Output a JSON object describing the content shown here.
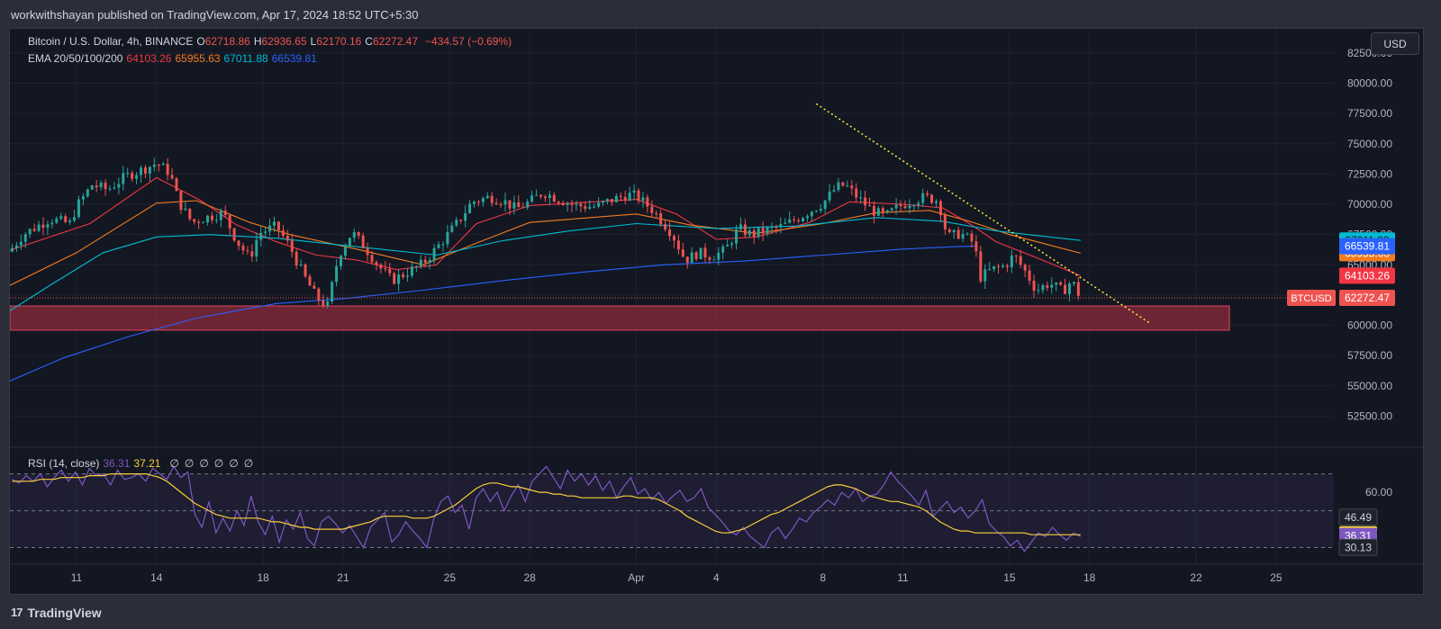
{
  "header": {
    "published": "workwithshayan published on TradingView.com, Apr 17, 2024 18:52 UTC+5:30"
  },
  "legend": {
    "symbol": "Bitcoin / U.S. Dollar, 4h, BINANCE",
    "ohlc": [
      {
        "k": "O",
        "v": "62718.86"
      },
      {
        "k": "H",
        "v": "62936.65"
      },
      {
        "k": "L",
        "v": "62170.16"
      },
      {
        "k": "C",
        "v": "62272.47"
      }
    ],
    "change": "−434.57 (−0.69%)",
    "ema_label": "EMA 20/50/100/200",
    "ema_values": [
      "64103.26",
      "65955.63",
      "67011.88",
      "66539.81"
    ],
    "rsi_label": "RSI (14, close)",
    "rsi_values": [
      "36.31",
      "37.21"
    ],
    "rsi_extra": [
      "∅",
      "∅",
      "∅",
      "∅",
      "∅",
      "∅"
    ]
  },
  "currency_button": "USD",
  "footer_brand": "TradingView",
  "colors": {
    "bg": "#131722",
    "up": "#26a69a",
    "down": "#ef5350",
    "ema20": "#f23645",
    "ema50": "#f57c1f",
    "ema100": "#00bcd4",
    "ema200": "#2962ff",
    "rsi": "#7e57c2",
    "rsi_ma": "#f7d138",
    "trendline": "#ffeb3b",
    "zone": "#8c2b3c"
  },
  "chart_data": {
    "type": "candlestick",
    "title": "Bitcoin / U.S. Dollar, 4h, BINANCE",
    "price_axis": {
      "ticks": [
        "82500.00",
        "80000.00",
        "77500.00",
        "75000.00",
        "72500.00",
        "70000.00",
        "67500.00",
        "65000.00",
        "62500.00",
        "60000.00",
        "57500.00",
        "55000.00",
        "52500.00"
      ],
      "ylim": [
        50300,
        84500
      ]
    },
    "time_axis": {
      "labels": [
        "11",
        "14",
        "18",
        "21",
        "25",
        "28",
        "Apr",
        "4",
        "8",
        "11",
        "15",
        "18",
        "22",
        "25"
      ],
      "label_dates": [
        "Mar 11",
        "Mar 14",
        "Mar 18",
        "Mar 21",
        "Mar 25",
        "Mar 28",
        "Apr 1",
        "Apr 4",
        "Apr 8",
        "Apr 11",
        "Apr 15",
        "Apr 18",
        "Apr 22",
        "Apr 25"
      ],
      "xlim": [
        "Mar 8 12:00",
        "Apr 27 04:00"
      ],
      "last_bar": "Apr 17 16:00"
    },
    "close_path": [
      [
        "Mar 8 14:00",
        66400
      ],
      [
        "Mar 9 00:00",
        67500
      ],
      [
        "Mar 10 00:00",
        68800
      ],
      [
        "Mar 10 18:00",
        68400
      ],
      [
        "Mar 11 00:00",
        69800
      ],
      [
        "Mar 11 14:00",
        71600
      ],
      [
        "Mar 12 04:00",
        71200
      ],
      [
        "Mar 12 20:00",
        72300
      ],
      [
        "Mar 13 12:00",
        72900
      ],
      [
        "Mar 14 00:00",
        73400
      ],
      [
        "Mar 14 12:00",
        72600
      ],
      [
        "Mar 14 20:00",
        70200
      ],
      [
        "Mar 15 08:00",
        68500
      ],
      [
        "Mar 15 20:00",
        68900
      ],
      [
        "Mar 16 12:00",
        69300
      ],
      [
        "Mar 17 00:00",
        67000
      ],
      [
        "Mar 17 12:00",
        65500
      ],
      [
        "Mar 17 20:00",
        67600
      ],
      [
        "Mar 18 12:00",
        68200
      ],
      [
        "Mar 19 00:00",
        66500
      ],
      [
        "Mar 19 12:00",
        64200
      ],
      [
        "Mar 20 00:00",
        62300
      ],
      [
        "Mar 20 10:00",
        61600
      ],
      [
        "Mar 20 20:00",
        65800
      ],
      [
        "Mar 21 08:00",
        67700
      ],
      [
        "Mar 21 20:00",
        66400
      ],
      [
        "Mar 22 08:00",
        64900
      ],
      [
        "Mar 22 20:00",
        63700
      ],
      [
        "Mar 23 08:00",
        64300
      ],
      [
        "Mar 24 00:00",
        65100
      ],
      [
        "Mar 24 16:00",
        66800
      ],
      [
        "Mar 25 08:00",
        68600
      ],
      [
        "Mar 25 20:00",
        70200
      ],
      [
        "Mar 26 12:00",
        70600
      ],
      [
        "Mar 27 00:00",
        70300
      ],
      [
        "Mar 27 12:00",
        69600
      ],
      [
        "Mar 28 00:00",
        70200
      ],
      [
        "Mar 28 12:00",
        71000
      ],
      [
        "Mar 29 00:00",
        70500
      ],
      [
        "Mar 29 16:00",
        69900
      ],
      [
        "Mar 30 12:00",
        69800
      ],
      [
        "Mar 31 00:00",
        70300
      ],
      [
        "Mar 31 16:00",
        70800
      ],
      [
        "Apr 1 00:00",
        70700
      ],
      [
        "Apr 1 16:00",
        69400
      ],
      [
        "Apr 2 08:00",
        67600
      ],
      [
        "Apr 2 20:00",
        65400
      ],
      [
        "Apr 3 08:00",
        66000
      ],
      [
        "Apr 3 20:00",
        65700
      ],
      [
        "Apr 4 08:00",
        66200
      ],
      [
        "Apr 4 20:00",
        68000
      ],
      [
        "Apr 5 08:00",
        67500
      ],
      [
        "Apr 5 20:00",
        67800
      ],
      [
        "Apr 6 12:00",
        68200
      ],
      [
        "Apr 7 08:00",
        69200
      ],
      [
        "Apr 8 00:00",
        70100
      ],
      [
        "Apr 8 12:00",
        71400
      ],
      [
        "Apr 8 20:00",
        71600
      ],
      [
        "Apr 9 08:00",
        70500
      ],
      [
        "Apr 9 20:00",
        69500
      ],
      [
        "Apr 10 08:00",
        69000
      ],
      [
        "Apr 10 20:00",
        69800
      ],
      [
        "Apr 11 08:00",
        70300
      ],
      [
        "Apr 11 20:00",
        70600
      ],
      [
        "Apr 12 08:00",
        70300
      ],
      [
        "Apr 12 16:00",
        67300
      ],
      [
        "Apr 13 04:00",
        67600
      ],
      [
        "Apr 13 16:00",
        66800
      ],
      [
        "Apr 13 22:00",
        64000
      ],
      [
        "Apr 14 08:00",
        64600
      ],
      [
        "Apr 14 20:00",
        64900
      ],
      [
        "Apr 15 04:00",
        65800
      ],
      [
        "Apr 15 16:00",
        64200
      ],
      [
        "Apr 16 00:00",
        62900
      ],
      [
        "Apr 16 12:00",
        63500
      ],
      [
        "Apr 17 00:00",
        62800
      ],
      [
        "Apr 17 08:00",
        63700
      ],
      [
        "Apr 17 16:00",
        62272
      ]
    ],
    "ema": [
      {
        "name": "EMA 20",
        "value": 64103.26,
        "points": [
          [
            "Mar 8 12:00",
            66200
          ],
          [
            "Mar 11 12:00",
            68400
          ],
          [
            "Mar 14 00:00",
            72200
          ],
          [
            "Mar 15 16:00",
            70300
          ],
          [
            "Mar 17 00:00",
            68300
          ],
          [
            "Mar 18 12:00",
            66900
          ],
          [
            "Mar 20 00:00",
            65800
          ],
          [
            "Mar 21 12:00",
            65400
          ],
          [
            "Mar 23 00:00",
            64600
          ],
          [
            "Mar 24 12:00",
            65000
          ],
          [
            "Mar 26 00:00",
            68400
          ],
          [
            "Mar 28 00:00",
            69900
          ],
          [
            "Apr 1 00:00",
            70400
          ],
          [
            "Apr 2 12:00",
            69200
          ],
          [
            "Apr 4 00:00",
            67100
          ],
          [
            "Apr 5 12:00",
            67300
          ],
          [
            "Apr 7 12:00",
            68500
          ],
          [
            "Apr 9 00:00",
            70200
          ],
          [
            "Apr 11 00:00",
            70000
          ],
          [
            "Apr 12 12:00",
            69700
          ],
          [
            "Apr 13 12:00",
            68400
          ],
          [
            "Apr 14 12:00",
            66900
          ],
          [
            "Apr 16 00:00",
            65600
          ],
          [
            "Apr 17 16:00",
            64100
          ]
        ]
      },
      {
        "name": "EMA 50",
        "value": 65955.63,
        "points": [
          [
            "Mar 8 12:00",
            63300
          ],
          [
            "Mar 11 00:00",
            66000
          ],
          [
            "Mar 14 00:00",
            70100
          ],
          [
            "Mar 15 12:00",
            70300
          ],
          [
            "Mar 17 12:00",
            68500
          ],
          [
            "Mar 19 00:00",
            67500
          ],
          [
            "Mar 21 12:00",
            66300
          ],
          [
            "Mar 24 00:00",
            65000
          ],
          [
            "Mar 26 00:00",
            66800
          ],
          [
            "Mar 28 00:00",
            68500
          ],
          [
            "Apr 1 00:00",
            69200
          ],
          [
            "Apr 3 00:00",
            68300
          ],
          [
            "Apr 5 12:00",
            67600
          ],
          [
            "Apr 8 00:00",
            68400
          ],
          [
            "Apr 10 00:00",
            69300
          ],
          [
            "Apr 12 00:00",
            69500
          ],
          [
            "Apr 13 12:00",
            68600
          ],
          [
            "Apr 15 00:00",
            67500
          ],
          [
            "Apr 17 16:00",
            65960
          ]
        ]
      },
      {
        "name": "EMA 100",
        "value": 67011.88,
        "points": [
          [
            "Mar 8 12:00",
            61200
          ],
          [
            "Mar 10 00:00",
            63300
          ],
          [
            "Mar 12 00:00",
            66000
          ],
          [
            "Mar 14 00:00",
            67300
          ],
          [
            "Mar 16 00:00",
            67500
          ],
          [
            "Mar 18 12:00",
            67200
          ],
          [
            "Mar 21 12:00",
            66500
          ],
          [
            "Mar 24 12:00",
            65800
          ],
          [
            "Mar 27 00:00",
            67000
          ],
          [
            "Mar 29 12:00",
            67800
          ],
          [
            "Apr 1 00:00",
            68400
          ],
          [
            "Apr 4 00:00",
            68000
          ],
          [
            "Apr 7 00:00",
            68200
          ],
          [
            "Apr 10 00:00",
            68900
          ],
          [
            "Apr 12 12:00",
            68600
          ],
          [
            "Apr 14 12:00",
            67800
          ],
          [
            "Apr 17 16:00",
            67010
          ]
        ]
      },
      {
        "name": "EMA 200",
        "value": 66539.81,
        "points": [
          [
            "Mar 8 12:00",
            55400
          ],
          [
            "Mar 10 12:00",
            57300
          ],
          [
            "Mar 13 00:00",
            59100
          ],
          [
            "Mar 15 12:00",
            60600
          ],
          [
            "Mar 18 12:00",
            61800
          ],
          [
            "Mar 21 00:00",
            62200
          ],
          [
            "Mar 24 00:00",
            62900
          ],
          [
            "Mar 27 00:00",
            63700
          ],
          [
            "Mar 30 00:00",
            64400
          ],
          [
            "Apr 2 00:00",
            65000
          ],
          [
            "Apr 5 00:00",
            65300
          ],
          [
            "Apr 8 00:00",
            65800
          ],
          [
            "Apr 11 00:00",
            66300
          ],
          [
            "Apr 13 00:00",
            66500
          ],
          [
            "Apr 13 18:00",
            66540
          ]
        ]
      }
    ],
    "last_price": {
      "label": "BTCUSD",
      "value": 62272.47
    },
    "support_zone": {
      "from": 59600,
      "to": 61600,
      "x_from": "Mar 8 12:00",
      "x_to": "Apr 23 06:00"
    },
    "trendline": {
      "start": [
        "Apr 7 18:00",
        78300
      ],
      "end": [
        "Apr 20 06:00",
        60200
      ],
      "style": "dotted"
    },
    "rsi": {
      "panel_range": [
        21,
        82
      ],
      "ticks": [
        "60.00"
      ],
      "levels": [
        70,
        30
      ],
      "badges": [
        "46.49",
        "37.21",
        "36.31",
        "30.13"
      ],
      "values": [
        67,
        65,
        69,
        66,
        70,
        63,
        68,
        72,
        66,
        71,
        64,
        73,
        69,
        70,
        64,
        72,
        67,
        68,
        70,
        66,
        73,
        70,
        67,
        74,
        68,
        71,
        48,
        41,
        55,
        38,
        46,
        39,
        50,
        42,
        58,
        44,
        37,
        47,
        33,
        45,
        40,
        49,
        35,
        31,
        44,
        47,
        43,
        38,
        42,
        36,
        30,
        41,
        45,
        49,
        33,
        37,
        44,
        39,
        35,
        30,
        46,
        55,
        58,
        49,
        53,
        40,
        57,
        62,
        55,
        60,
        50,
        58,
        64,
        55,
        66,
        70,
        74,
        68,
        62,
        72,
        66,
        70,
        64,
        69,
        61,
        66,
        57,
        63,
        68,
        59,
        62,
        56,
        60,
        54,
        58,
        61,
        55,
        57,
        62,
        52,
        48,
        44,
        39,
        37,
        41,
        36,
        33,
        30,
        38,
        41,
        35,
        40,
        46,
        44,
        49,
        52,
        56,
        53,
        60,
        57,
        62,
        55,
        58,
        59,
        64,
        71,
        66,
        62,
        58,
        53,
        61,
        47,
        51,
        55,
        49,
        52,
        46,
        50,
        56,
        43,
        39,
        36,
        31,
        34,
        28,
        33,
        38,
        36,
        41,
        37,
        34,
        38,
        36
      ],
      "ma": [
        66,
        66,
        66,
        66,
        67,
        67,
        67,
        68,
        68,
        68,
        68,
        69,
        69,
        69,
        70,
        70,
        70,
        70,
        70,
        70,
        69,
        68,
        66,
        63,
        60,
        57,
        54,
        52,
        50,
        48,
        47,
        46,
        46,
        46,
        46,
        46,
        45,
        44,
        44,
        43,
        42,
        41,
        41,
        40,
        40,
        40,
        40,
        40,
        41,
        42,
        43,
        44,
        46,
        47,
        47,
        47,
        47,
        46,
        46,
        46,
        47,
        49,
        51,
        53,
        56,
        59,
        62,
        64,
        65,
        65,
        64,
        63,
        63,
        62,
        61,
        60,
        60,
        59,
        59,
        58,
        58,
        57,
        57,
        57,
        57,
        57,
        57,
        58,
        58,
        57,
        57,
        57,
        56,
        54,
        52,
        50,
        47,
        45,
        43,
        41,
        39,
        38,
        38,
        39,
        40,
        42,
        44,
        46,
        48,
        49,
        51,
        53,
        55,
        57,
        59,
        61,
        63,
        64,
        64,
        63,
        62,
        60,
        58,
        57,
        56,
        55,
        55,
        54,
        53,
        52,
        50,
        47,
        44,
        42,
        40,
        39,
        39,
        38,
        38,
        38,
        38,
        38,
        38,
        38,
        38,
        37,
        37,
        37,
        37,
        37,
        37,
        37,
        37
      ]
    }
  }
}
